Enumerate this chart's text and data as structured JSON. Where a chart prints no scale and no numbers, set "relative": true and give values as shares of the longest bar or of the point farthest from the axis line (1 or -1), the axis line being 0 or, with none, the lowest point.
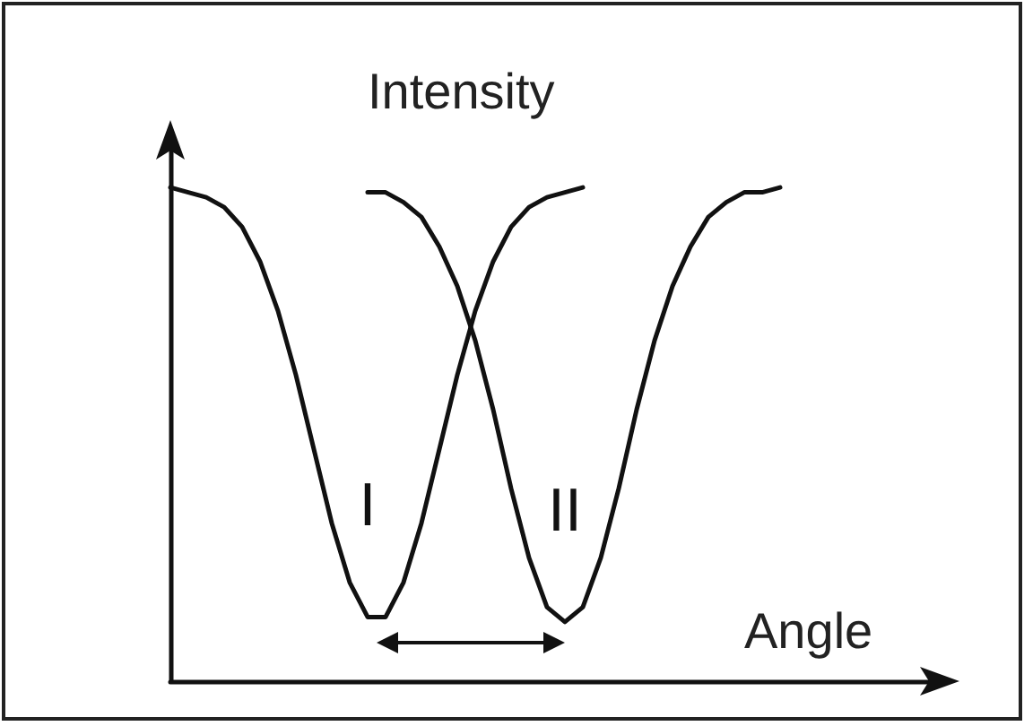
{
  "chart_data": {
    "type": "line",
    "relative": true,
    "xlabel": "Angle",
    "ylabel": "Intensity",
    "grid": false,
    "legend": false,
    "marker": "none",
    "line_style": "solid",
    "categories": [
      null,
      null,
      null,
      null,
      null,
      null,
      null,
      null,
      null,
      null,
      null,
      null,
      null,
      null,
      null,
      null,
      null,
      null,
      null,
      null,
      null,
      null,
      null,
      null,
      null,
      null,
      null,
      null,
      null,
      null,
      null,
      null,
      null,
      null,
      null
    ],
    "series": [
      {
        "name": "I",
        "color": "#111111",
        "values": [
          1.0,
          0.99,
          0.98,
          0.96,
          0.92,
          0.85,
          0.75,
          0.62,
          0.47,
          0.32,
          0.2,
          0.13,
          0.13,
          0.2,
          0.32,
          0.47,
          0.62,
          0.75,
          0.85,
          0.92,
          0.96,
          0.98,
          0.99,
          1.0,
          null,
          null,
          null,
          null,
          null,
          null,
          null,
          null,
          null,
          null,
          null
        ]
      },
      {
        "name": "II",
        "color": "#111111",
        "values": [
          null,
          null,
          null,
          null,
          null,
          null,
          null,
          null,
          null,
          null,
          null,
          0.99,
          0.99,
          0.97,
          0.94,
          0.88,
          0.8,
          0.69,
          0.55,
          0.39,
          0.25,
          0.15,
          0.12,
          0.15,
          0.25,
          0.39,
          0.55,
          0.69,
          0.8,
          0.88,
          0.94,
          0.97,
          0.99,
          0.99,
          1.0
        ]
      }
    ]
  }
}
